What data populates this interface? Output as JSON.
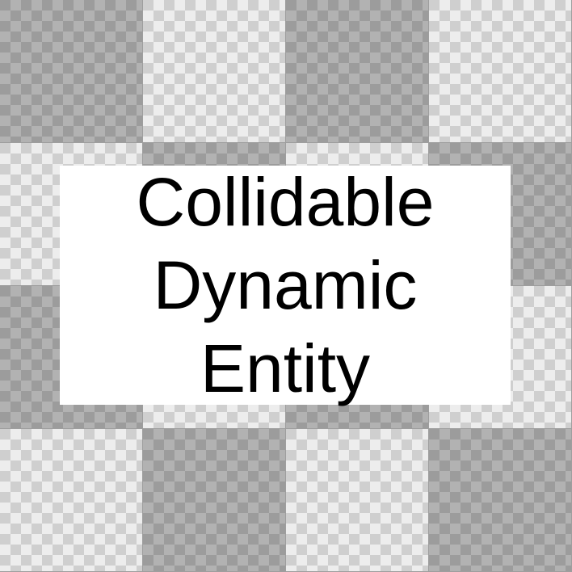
{
  "texture": {
    "pattern": [
      "dark",
      "light",
      "dark",
      "light",
      "light",
      "dark",
      "light",
      "dark",
      "dark",
      "light",
      "dark",
      "light",
      "light",
      "dark",
      "light",
      "dark"
    ],
    "colors": {
      "dark_base": "#9c9c9c",
      "dark_check": "#b2b2b2",
      "light_base": "#cfcfcf",
      "light_check": "#ededed"
    }
  },
  "label": {
    "lines": [
      "Collidable",
      "Dynamic",
      "Entity"
    ],
    "text_color": "#000000",
    "panel_color": "#ffffff"
  }
}
